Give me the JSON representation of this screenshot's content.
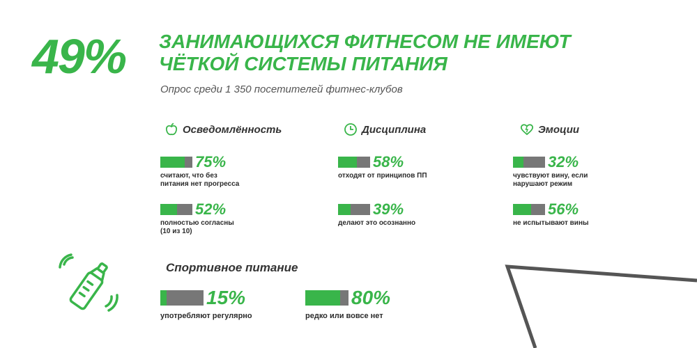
{
  "header": {
    "percent": "49%",
    "headline_line1": "ЗАНИМАЮЩИХСЯ ФИТНЕСОМ НЕ ИМЕЮТ",
    "headline_line2": "ЧЁТКОЙ СИСТЕМЫ ПИТАНИЯ",
    "subtitle": "Опрос среди 1 350 посетителей фитнес-клубов"
  },
  "colors": {
    "accent": "#39b54a",
    "bar_bg": "#777777",
    "text": "#2b2b2b",
    "stripe": "#555555"
  },
  "categories": [
    {
      "title": "Осведомлённость",
      "icon": "apple-icon",
      "stats": [
        {
          "percent": "75%",
          "value": 0.75,
          "desc": "считают, что без\nпитания нет прогресса"
        },
        {
          "percent": "52%",
          "value": 0.52,
          "desc": "полностью согласны\n(10 из 10)"
        }
      ]
    },
    {
      "title": "Дисциплина",
      "icon": "clock-icon",
      "stats": [
        {
          "percent": "58%",
          "value": 0.58,
          "desc": "отходят от принципов ПП"
        },
        {
          "percent": "39%",
          "value": 0.39,
          "desc": "делают это осознанно"
        }
      ]
    },
    {
      "title": "Эмоции",
      "icon": "heart-icon",
      "stats": [
        {
          "percent": "32%",
          "value": 0.32,
          "desc": "чувствуют вину, если\nнарушают режим"
        },
        {
          "percent": "56%",
          "value": 0.56,
          "desc": "не испытывают вины"
        }
      ]
    }
  ],
  "sports": {
    "title": "Спортивное питание",
    "icon": "shaker-icon",
    "stats": [
      {
        "percent": "15%",
        "value": 0.15,
        "desc": "употребляют регулярно"
      },
      {
        "percent": "80%",
        "value": 0.8,
        "desc": "редко или вовсе нет"
      }
    ]
  }
}
